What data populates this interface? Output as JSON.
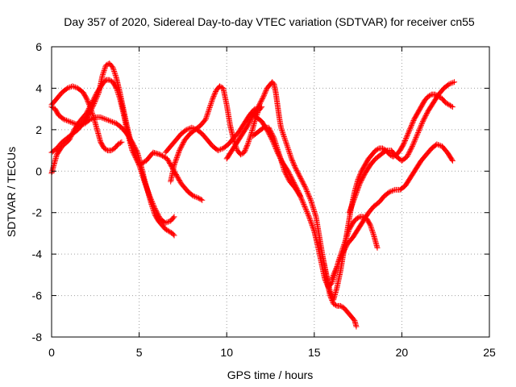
{
  "chart_data": {
    "type": "scatter",
    "title": "Day 357 of 2020, Sidereal Day-to-day VTEC variation (SDTVAR) for receiver cn55",
    "xlabel": "GPS time / hours",
    "ylabel": "SDTVAR / TECUs",
    "xlim": [
      0,
      25
    ],
    "ylim": [
      -8,
      6
    ],
    "xticks": [
      0,
      5,
      10,
      15,
      20,
      25
    ],
    "yticks": [
      -8,
      -6,
      -4,
      -2,
      0,
      2,
      4,
      6
    ],
    "grid": true,
    "marker": "+",
    "color": "#ff0000",
    "series": [
      {
        "x": [
          0.0,
          0.3,
          0.6,
          1.0,
          1.3,
          1.6,
          2.0,
          2.3,
          2.6,
          2.9,
          3.1,
          3.3,
          3.5,
          3.7,
          3.9,
          4.1,
          4.3,
          4.6,
          5.0,
          5.4,
          5.8,
          6.2,
          6.6,
          7.0,
          7.4,
          7.8,
          8.1,
          8.4,
          8.6
        ],
        "y": [
          -0.1,
          0.8,
          1.2,
          1.5,
          2.0,
          2.4,
          2.8,
          3.3,
          3.8,
          4.2,
          4.4,
          4.4,
          4.3,
          4.0,
          3.5,
          2.8,
          2.0,
          1.0,
          0.3,
          0.5,
          0.9,
          0.8,
          0.6,
          0.0,
          -0.6,
          -1.0,
          -1.2,
          -1.3,
          -1.4
        ]
      },
      {
        "x": [
          0.0,
          0.2,
          0.4,
          0.7,
          1.0,
          1.3,
          1.6,
          1.9,
          2.2,
          2.5,
          2.8,
          3.1,
          3.4,
          3.7,
          4.0,
          4.3,
          4.6,
          4.9,
          5.1,
          5.3,
          5.5,
          5.7,
          5.9,
          6.1,
          6.3,
          6.5,
          6.7,
          6.9,
          7.0
        ],
        "y": [
          3.1,
          3.0,
          2.7,
          2.5,
          2.4,
          2.3,
          2.2,
          2.3,
          2.5,
          2.6,
          2.6,
          2.5,
          2.4,
          2.3,
          2.1,
          1.8,
          1.4,
          0.9,
          0.3,
          -0.4,
          -1.0,
          -1.6,
          -2.1,
          -2.4,
          -2.6,
          -2.8,
          -2.9,
          -3.0,
          -3.1
        ]
      },
      {
        "x": [
          0.0,
          0.3,
          0.6,
          0.9,
          1.2,
          1.5,
          1.8,
          2.1,
          2.4,
          2.7,
          2.9,
          3.1,
          3.3,
          3.5,
          3.7,
          3.9,
          4.1,
          4.3,
          4.5,
          4.7,
          5.0,
          5.3,
          5.6,
          5.9,
          6.2,
          6.5,
          6.8,
          7.0
        ],
        "y": [
          0.9,
          1.1,
          1.4,
          1.6,
          1.8,
          2.0,
          2.3,
          2.7,
          3.2,
          3.8,
          4.6,
          5.1,
          5.2,
          5.0,
          4.5,
          3.8,
          3.0,
          2.2,
          1.5,
          1.0,
          0.3,
          -0.5,
          -1.2,
          -1.8,
          -2.3,
          -2.5,
          -2.4,
          -2.2
        ]
      },
      {
        "x": [
          0.0,
          0.3,
          0.6,
          0.9,
          1.2,
          1.5,
          1.8,
          2.0,
          2.2,
          2.4,
          2.6,
          2.8,
          3.0,
          3.2,
          3.4,
          3.6,
          3.8,
          4.0
        ],
        "y": [
          3.2,
          3.5,
          3.8,
          4.0,
          4.1,
          4.0,
          3.8,
          3.5,
          3.1,
          2.6,
          2.0,
          1.4,
          1.1,
          1.0,
          1.0,
          1.1,
          1.3,
          1.4
        ]
      },
      {
        "x": [
          6.8,
          7.0,
          7.3,
          7.6,
          7.9,
          8.2,
          8.5,
          8.8,
          9.0,
          9.2,
          9.4,
          9.6,
          9.8,
          10.0,
          10.2,
          10.4,
          10.6,
          10.8,
          11.0,
          11.2,
          11.4,
          11.6,
          11.8,
          12.0
        ],
        "y": [
          -0.5,
          0.3,
          1.0,
          1.5,
          1.8,
          2.0,
          2.2,
          2.5,
          3.0,
          3.5,
          3.9,
          4.1,
          4.0,
          3.2,
          2.2,
          1.5,
          1.0,
          0.8,
          0.9,
          1.3,
          1.8,
          2.4,
          2.9,
          3.1
        ]
      },
      {
        "x": [
          6.5,
          6.8,
          7.1,
          7.4,
          7.7,
          8.0,
          8.3,
          8.6,
          8.9,
          9.2,
          9.5,
          9.8,
          10.1,
          10.4,
          10.7,
          11.0,
          11.3,
          11.6
        ],
        "y": [
          0.9,
          1.2,
          1.5,
          1.8,
          2.0,
          2.1,
          2.0,
          1.8,
          1.5,
          1.2,
          1.0,
          1.1,
          1.3,
          1.6,
          1.9,
          2.3,
          2.7,
          3.0
        ]
      },
      {
        "x": [
          10.0,
          10.3,
          10.6,
          10.9,
          11.2,
          11.5,
          11.8,
          12.1,
          12.3,
          12.5,
          12.6,
          12.7,
          12.8,
          12.9,
          13.0,
          13.1,
          13.3,
          13.5,
          13.7,
          13.9,
          14.2,
          14.5,
          14.8,
          15.1,
          15.3,
          15.5,
          15.7,
          15.9,
          16.1,
          16.3,
          16.5,
          16.7,
          16.9,
          17.1,
          17.3,
          17.4
        ],
        "y": [
          0.6,
          1.0,
          1.4,
          1.8,
          2.2,
          2.7,
          3.1,
          3.6,
          4.0,
          4.2,
          4.3,
          4.2,
          3.8,
          3.2,
          2.6,
          2.1,
          1.6,
          1.1,
          0.6,
          0.2,
          -0.3,
          -0.8,
          -1.4,
          -2.2,
          -3.2,
          -4.2,
          -5.2,
          -6.0,
          -6.4,
          -6.5,
          -6.5,
          -6.6,
          -6.8,
          -7.0,
          -7.2,
          -7.5
        ]
      },
      {
        "x": [
          11.4,
          11.7,
          12.0,
          12.3,
          12.6,
          12.9,
          13.2,
          13.5,
          13.8,
          14.1,
          14.4,
          14.7,
          15.0,
          15.2,
          15.4,
          15.6,
          15.8,
          16.0,
          16.2,
          16.4,
          16.6,
          16.8,
          17.0,
          17.2,
          17.4,
          17.6,
          17.8,
          18.0,
          18.2,
          18.4,
          18.6
        ],
        "y": [
          2.8,
          2.6,
          2.4,
          2.0,
          1.5,
          0.9,
          0.4,
          0.0,
          -0.5,
          -1.0,
          -1.6,
          -2.2,
          -2.9,
          -3.6,
          -4.4,
          -5.2,
          -5.6,
          -5.4,
          -4.9,
          -4.3,
          -3.8,
          -3.3,
          -2.8,
          -2.5,
          -2.3,
          -2.2,
          -2.2,
          -2.3,
          -2.6,
          -3.1,
          -3.7
        ]
      },
      {
        "x": [
          11.5,
          11.8,
          12.1,
          12.4,
          12.7,
          13.0,
          13.3,
          13.6,
          13.9,
          14.2
        ],
        "y": [
          1.7,
          1.9,
          2.1,
          2.1,
          1.6,
          0.8,
          0.0,
          -0.5,
          -0.8,
          -1.2
        ]
      },
      {
        "x": [
          15.5,
          15.7,
          15.9,
          16.1,
          16.3,
          16.5,
          16.7,
          16.9,
          17.1,
          17.3,
          17.5,
          17.7,
          17.9,
          18.1,
          18.3,
          18.5,
          18.7,
          18.9,
          19.1,
          19.3,
          19.5,
          19.7,
          19.9,
          20.1,
          20.3,
          20.5,
          20.7,
          20.9,
          21.1,
          21.3,
          21.5,
          21.7,
          21.9,
          22.1,
          22.3,
          22.5,
          22.7,
          22.9
        ],
        "y": [
          -4.2,
          -5.0,
          -5.8,
          -6.2,
          -5.6,
          -4.8,
          -3.8,
          -2.8,
          -1.8,
          -1.0,
          -0.4,
          0.0,
          0.3,
          0.6,
          0.8,
          1.0,
          1.1,
          1.1,
          1.0,
          0.8,
          0.7,
          0.8,
          1.0,
          1.3,
          1.7,
          2.1,
          2.5,
          2.8,
          3.1,
          3.4,
          3.6,
          3.7,
          3.7,
          3.6,
          3.5,
          3.3,
          3.2,
          3.1
        ]
      },
      {
        "x": [
          16.0,
          16.3,
          16.6,
          16.9,
          17.2,
          17.5,
          17.8,
          18.1,
          18.4,
          18.7,
          19.0,
          19.3,
          19.6,
          19.9,
          20.2,
          20.5,
          20.8,
          21.1,
          21.4,
          21.7,
          22.0,
          22.3,
          22.6,
          22.9
        ],
        "y": [
          -5.2,
          -4.6,
          -4.0,
          -3.5,
          -3.2,
          -2.8,
          -2.4,
          -2.0,
          -1.7,
          -1.5,
          -1.2,
          -1.0,
          -0.9,
          -0.9,
          -0.7,
          -0.3,
          0.1,
          0.5,
          0.8,
          1.1,
          1.3,
          1.2,
          0.9,
          0.5
        ]
      },
      {
        "x": [
          17.0,
          17.3,
          17.6,
          17.9,
          18.2,
          18.5,
          18.8,
          19.1,
          19.4,
          19.7,
          20.0,
          20.3,
          20.6,
          20.9,
          21.2,
          21.5,
          21.8,
          22.1,
          22.4,
          22.7,
          23.0
        ],
        "y": [
          -2.0,
          -1.3,
          -0.6,
          -0.1,
          0.3,
          0.6,
          0.8,
          1.0,
          1.0,
          0.7,
          0.5,
          0.7,
          1.2,
          1.8,
          2.4,
          2.9,
          3.3,
          3.7,
          4.0,
          4.2,
          4.3
        ]
      }
    ]
  }
}
